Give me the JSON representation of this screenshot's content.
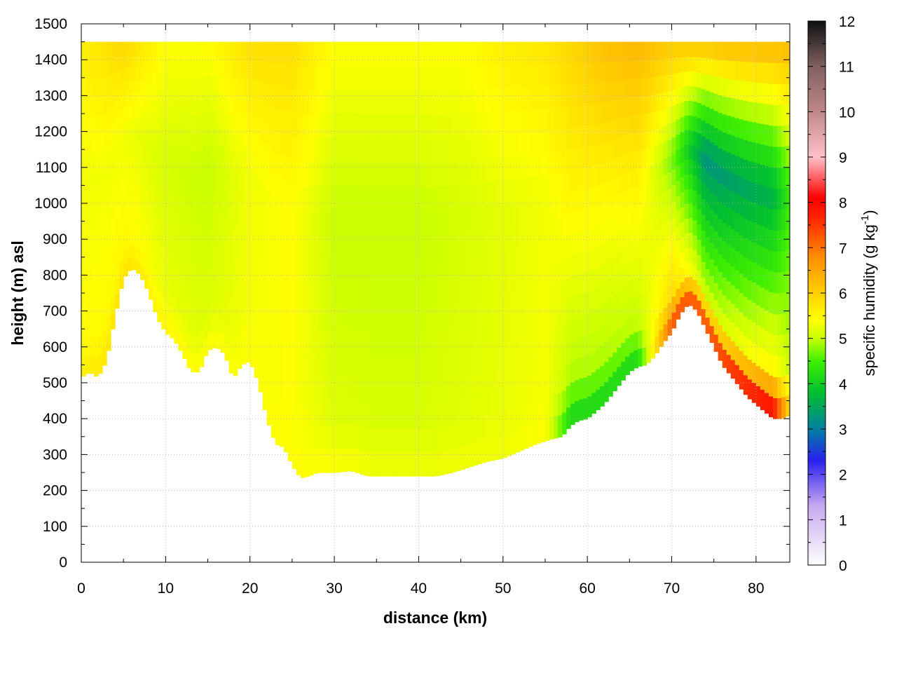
{
  "chart_data": {
    "type": "heatmap",
    "title": "",
    "xlabel": "distance (km)",
    "ylabel": "height (m) asl",
    "xlim": [
      0,
      84
    ],
    "ylim": [
      0,
      1500
    ],
    "x_ticks": [
      0,
      10,
      20,
      30,
      40,
      50,
      60,
      70,
      80
    ],
    "y_ticks": [
      0,
      100,
      200,
      300,
      400,
      500,
      600,
      700,
      800,
      900,
      1000,
      1100,
      1200,
      1300,
      1400,
      1500
    ],
    "grid": true,
    "colorbar": {
      "label_main": "specific humidity (g kg",
      "label_sup": "-1",
      "label_close": ")",
      "range": [
        0,
        12
      ],
      "ticks": [
        0,
        1,
        2,
        3,
        4,
        5,
        6,
        7,
        8,
        9,
        10,
        11,
        12
      ],
      "stops": [
        {
          "value": 0,
          "color": "#ffffff"
        },
        {
          "value": 1.3,
          "color": "#c8a8f0"
        },
        {
          "value": 2.3,
          "color": "#2a20f0"
        },
        {
          "value": 3.0,
          "color": "#0080a0"
        },
        {
          "value": 3.8,
          "color": "#00c030"
        },
        {
          "value": 4.5,
          "color": "#40f000"
        },
        {
          "value": 5.0,
          "color": "#c8ff00"
        },
        {
          "value": 5.4,
          "color": "#ffff00"
        },
        {
          "value": 6.1,
          "color": "#ffc800"
        },
        {
          "value": 6.8,
          "color": "#ff8c00"
        },
        {
          "value": 7.7,
          "color": "#ff2000"
        },
        {
          "value": 8.1,
          "color": "#ff0000"
        },
        {
          "value": 9.0,
          "color": "#ffc0c8"
        },
        {
          "value": 10.0,
          "color": "#c08888"
        },
        {
          "value": 11.0,
          "color": "#806060"
        },
        {
          "value": 12.0,
          "color": "#101010"
        }
      ]
    },
    "terrain": {
      "x": [
        0,
        1,
        2,
        3,
        4,
        5,
        6,
        7,
        8,
        9,
        10,
        11,
        12,
        13,
        14,
        15,
        16,
        17,
        18,
        19,
        20,
        21,
        22,
        23,
        24,
        25,
        26,
        27,
        28,
        29,
        30,
        32,
        34,
        36,
        38,
        40,
        42,
        44,
        46,
        48,
        50,
        52,
        54,
        56,
        57,
        58,
        59,
        60,
        61,
        62,
        63,
        64,
        65,
        66,
        67,
        68,
        69,
        70,
        71,
        72,
        73,
        74,
        75,
        76,
        77,
        78,
        79,
        80,
        81,
        82,
        83,
        84
      ],
      "height": [
        515,
        530,
        515,
        560,
        680,
        790,
        820,
        800,
        750,
        680,
        640,
        620,
        580,
        530,
        530,
        590,
        600,
        580,
        510,
        550,
        560,
        500,
        400,
        330,
        320,
        270,
        235,
        240,
        250,
        250,
        250,
        255,
        240,
        240,
        240,
        240,
        240,
        250,
        265,
        280,
        290,
        310,
        330,
        345,
        350,
        380,
        395,
        400,
        420,
        440,
        470,
        500,
        530,
        545,
        550,
        575,
        610,
        640,
        690,
        720,
        700,
        650,
        600,
        550,
        520,
        490,
        460,
        440,
        420,
        400,
        400,
        410
      ]
    },
    "top_height": 1450,
    "moisture_field": {
      "x": [
        0,
        5,
        10,
        15,
        20,
        25,
        30,
        35,
        40,
        45,
        50,
        55,
        58,
        62,
        66,
        70,
        74,
        78,
        82,
        84
      ],
      "near_ground": [
        5.6,
        5.8,
        5.5,
        5.4,
        5.4,
        5.4,
        5.4,
        5.3,
        5.3,
        5.3,
        5.3,
        5.4,
        4.0,
        4.0,
        4.0,
        7.6,
        7.8,
        8.2,
        8.5,
        6.0
      ],
      "mid_level": [
        5.3,
        5.3,
        5.1,
        5.0,
        5.3,
        5.4,
        5.0,
        5.0,
        5.0,
        5.1,
        5.2,
        5.3,
        5.5,
        5.5,
        5.6,
        4.7,
        3.2,
        3.4,
        3.6,
        4.4
      ],
      "upper_level": [
        5.6,
        5.9,
        5.4,
        5.4,
        5.8,
        5.8,
        5.4,
        5.4,
        5.4,
        5.4,
        5.6,
        5.7,
        5.9,
        6.2,
        6.3,
        6.1,
        6.2,
        6.3,
        6.3,
        6.3
      ]
    }
  }
}
